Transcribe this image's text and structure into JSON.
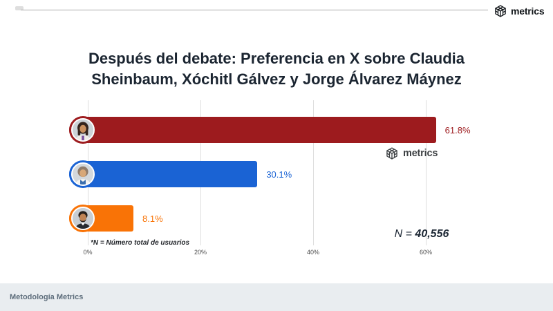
{
  "brand": {
    "name": "metrics"
  },
  "title": "Después del debate: Preferencia en X sobre Claudia Sheinbaum, Xóchitl Gálvez y Jorge Álvarez Máynez",
  "chart_data": {
    "type": "bar",
    "orientation": "horizontal",
    "title": "Después del debate: Preferencia en X sobre Claudia Sheinbaum, Xóchitl Gálvez y Jorge Álvarez Máynez",
    "categories": [
      "Claudia Sheinbaum",
      "Xóchitl Gálvez",
      "Jorge Álvarez Máynez"
    ],
    "values": [
      61.8,
      30.1,
      8.1
    ],
    "value_labels": [
      "61.8%",
      "30.1%",
      "8.1%"
    ],
    "bar_colors": [
      "#9d1b1e",
      "#1a63d4",
      "#f97306"
    ],
    "x_ticks": [
      {
        "value": 0,
        "label": "0%"
      },
      {
        "value": 20,
        "label": "20%"
      },
      {
        "value": 40,
        "label": "40%"
      },
      {
        "value": 60,
        "label": "60%"
      }
    ],
    "xlim": [
      0,
      65
    ],
    "grid": true,
    "legend": "none",
    "sample_note": "N = 40,556",
    "footnote": "*N = Número total de usuarios"
  },
  "sample": {
    "prefix": "N = ",
    "value": "40,556"
  },
  "watermark": {
    "label": "metrics"
  },
  "footnote": "*N = Número total de usuarios",
  "footer": {
    "label": "Metodología Metrics"
  }
}
